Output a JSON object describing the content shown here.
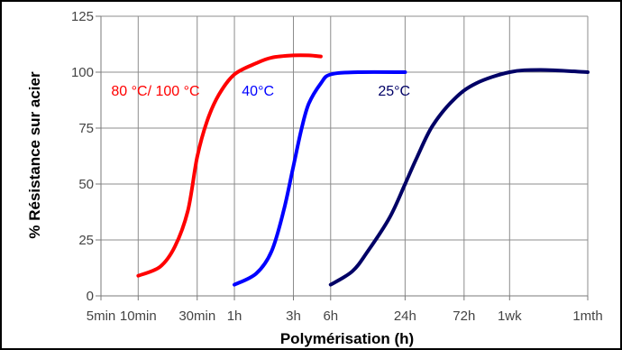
{
  "chart_data": {
    "type": "line",
    "xlabel": "Polymérisation (h)",
    "ylabel": "% Résistance sur acier",
    "x_scale": "log",
    "xlim": [
      0.08333,
      720
    ],
    "ylim": [
      0,
      125
    ],
    "grid": true,
    "x_ticks": [
      {
        "value": 0.08333,
        "label": "5min"
      },
      {
        "value": 0.16667,
        "label": "10min"
      },
      {
        "value": 0.5,
        "label": "30min"
      },
      {
        "value": 1,
        "label": "1h"
      },
      {
        "value": 3,
        "label": "3h"
      },
      {
        "value": 6,
        "label": "6h"
      },
      {
        "value": 24,
        "label": "24h"
      },
      {
        "value": 72,
        "label": "72h"
      },
      {
        "value": 168,
        "label": "1wk"
      },
      {
        "value": 720,
        "label": "1mth"
      }
    ],
    "y_ticks": [
      {
        "value": 0,
        "label": "0"
      },
      {
        "value": 25,
        "label": "25"
      },
      {
        "value": 50,
        "label": "50"
      },
      {
        "value": 75,
        "label": "75"
      },
      {
        "value": 100,
        "label": "100"
      },
      {
        "value": 125,
        "label": "125"
      }
    ],
    "series": [
      {
        "name": "80 °C/ 100 °C",
        "color": "#ff0000",
        "points": [
          [
            0.167,
            9
          ],
          [
            0.25,
            13
          ],
          [
            0.33,
            22
          ],
          [
            0.42,
            38
          ],
          [
            0.5,
            62
          ],
          [
            0.6,
            78
          ],
          [
            0.75,
            90
          ],
          [
            1.0,
            99
          ],
          [
            1.5,
            104
          ],
          [
            2.0,
            106.5
          ],
          [
            3.0,
            107.5
          ],
          [
            4.0,
            107.5
          ],
          [
            5.0,
            107
          ]
        ],
        "label_anchor": [
          0.167,
          92
        ]
      },
      {
        "name": "40°C",
        "color": "#0000ff",
        "points": [
          [
            1.0,
            5
          ],
          [
            1.5,
            10
          ],
          [
            2.0,
            20
          ],
          [
            2.5,
            38
          ],
          [
            3.0,
            58
          ],
          [
            3.5,
            75
          ],
          [
            4.0,
            86
          ],
          [
            5.0,
            95
          ],
          [
            6.0,
            99
          ],
          [
            10,
            100
          ],
          [
            24,
            100
          ]
        ],
        "label_anchor": [
          1.9,
          92
        ]
      },
      {
        "name": "25°C",
        "color": "#000066",
        "points": [
          [
            6.0,
            5
          ],
          [
            9,
            11
          ],
          [
            12,
            20
          ],
          [
            18,
            35
          ],
          [
            24,
            50
          ],
          [
            30,
            62
          ],
          [
            40,
            76
          ],
          [
            60,
            88
          ],
          [
            90,
            95
          ],
          [
            168,
            100
          ],
          [
            300,
            101
          ],
          [
            720,
            100
          ]
        ],
        "label_anchor": [
          24,
          92
        ]
      }
    ]
  }
}
